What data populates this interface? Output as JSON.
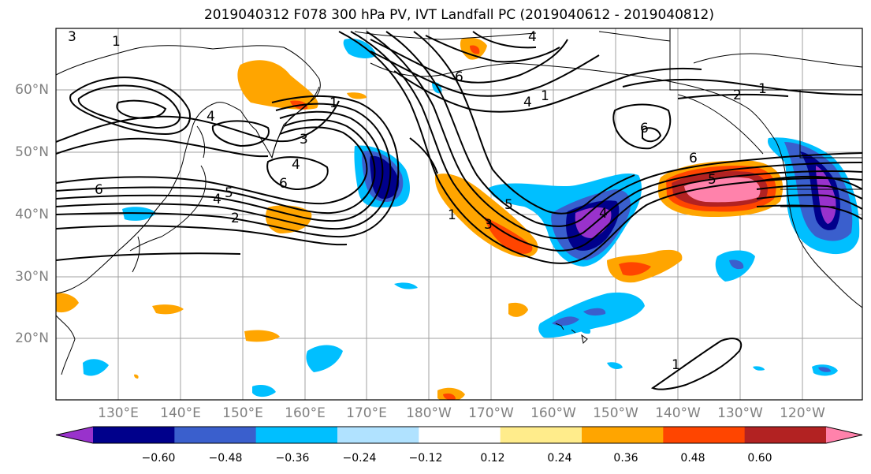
{
  "title": "2019040312 F078 300 hPa PV, IVT Landfall PC (2019040612 - 2019040812)",
  "lat_labels": [
    "60°N",
    "50°N",
    "40°N",
    "30°N",
    "20°N"
  ],
  "lon_labels": [
    "130°E",
    "140°E",
    "150°E",
    "160°E",
    "170°E",
    "180°W",
    "170°W",
    "160°W",
    "150°W",
    "140°W",
    "130°W",
    "120°W"
  ],
  "colorbar": {
    "ticks": [
      "−0.60",
      "−0.48",
      "−0.36",
      "−0.24",
      "−0.12",
      "0.12",
      "0.24",
      "0.36",
      "0.48",
      "0.60"
    ],
    "colors": [
      "#9932cc",
      "#00008b",
      "#3a5fcd",
      "#00bfff",
      "#b0e2ff",
      "#ffffff",
      "#ffec8b",
      "#ffa500",
      "#ff4500",
      "#b22222",
      "#ff82ab"
    ]
  },
  "contour_labels": [
    {
      "text": "3"
    },
    {
      "text": "1"
    },
    {
      "text": "6"
    },
    {
      "text": "2"
    },
    {
      "text": "4"
    },
    {
      "text": "5"
    },
    {
      "text": "4"
    },
    {
      "text": "6"
    },
    {
      "text": "3"
    },
    {
      "text": "1"
    },
    {
      "text": "4"
    },
    {
      "text": "6"
    },
    {
      "text": "4"
    },
    {
      "text": "5"
    },
    {
      "text": "1"
    },
    {
      "text": "3"
    },
    {
      "text": "6"
    },
    {
      "text": "5"
    },
    {
      "text": "4"
    },
    {
      "text": "6"
    },
    {
      "text": "2"
    },
    {
      "text": "1"
    },
    {
      "text": "1"
    },
    {
      "text": "4"
    },
    {
      "text": "1"
    }
  ]
}
